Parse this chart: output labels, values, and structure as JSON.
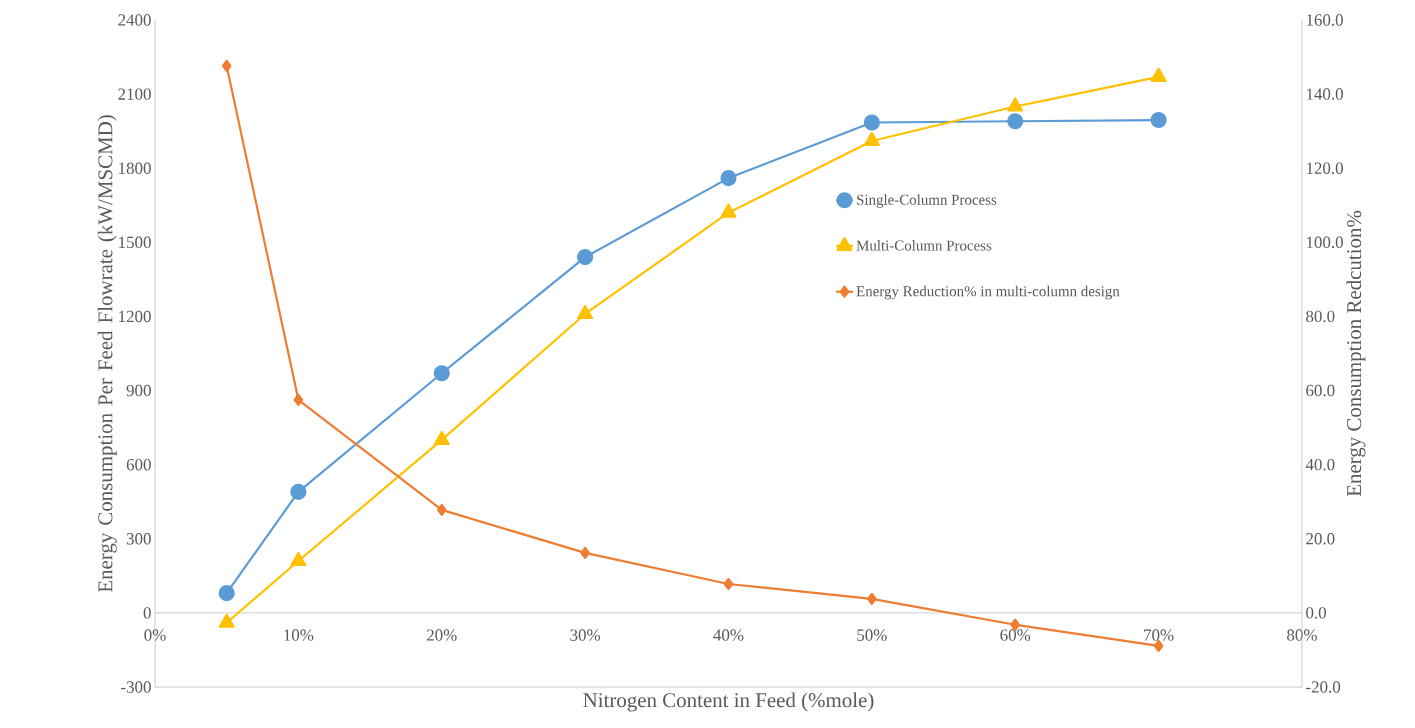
{
  "chart_data": {
    "type": "line",
    "xlabel": "Nitrogen Content in Feed (%mole)",
    "ylabel": "Energy Consumption Per Feed Flowrate (kW/MSCMD)",
    "y2label": "Energy Consumption Redcution%",
    "x": [
      5,
      10,
      20,
      30,
      40,
      50,
      60,
      70
    ],
    "xlim": [
      0,
      80
    ],
    "xticks": [
      {
        "value": 0,
        "label": "0%"
      },
      {
        "value": 10,
        "label": "10%"
      },
      {
        "value": 20,
        "label": "20%"
      },
      {
        "value": 30,
        "label": "30%"
      },
      {
        "value": 40,
        "label": "40%"
      },
      {
        "value": 50,
        "label": "50%"
      },
      {
        "value": 60,
        "label": "60%"
      },
      {
        "value": 70,
        "label": "70%"
      },
      {
        "value": 80,
        "label": "80%"
      }
    ],
    "ylim": [
      -300,
      2400
    ],
    "yticks": [
      -300,
      0,
      300,
      600,
      900,
      1200,
      1500,
      1800,
      2100,
      2400
    ],
    "y2lim": [
      -20,
      160
    ],
    "y2ticks": [
      {
        "value": -20,
        "label": "-20.0"
      },
      {
        "value": 0,
        "label": "0.0"
      },
      {
        "value": 20,
        "label": "20.0"
      },
      {
        "value": 40,
        "label": "40.0"
      },
      {
        "value": 60,
        "label": "60.0"
      },
      {
        "value": 80,
        "label": "80.0"
      },
      {
        "value": 100,
        "label": "100.0"
      },
      {
        "value": 120,
        "label": "120.0"
      },
      {
        "value": 140,
        "label": "140.0"
      },
      {
        "value": 160,
        "label": "160.0"
      }
    ],
    "series": [
      {
        "name": "Single-Column Process",
        "color": "#5b9bd5",
        "marker": "circle",
        "values": [
          80,
          490,
          970,
          1440,
          1760,
          1985,
          1990,
          1995
        ]
      },
      {
        "name": "Multi-Column Process",
        "color": "#ffc000",
        "marker": "triangle",
        "values": [
          -40,
          210,
          700,
          1210,
          1620,
          1910,
          2050,
          2170
        ]
      },
      {
        "name": "Energy Reduction% in multi-column design",
        "color": "#ed7d31",
        "marker": "diamond",
        "axis": "y2",
        "values": [
          147.6,
          57.5,
          27.8,
          16.2,
          7.8,
          3.8,
          -3.2,
          -8.9
        ]
      }
    ],
    "grid": false,
    "legend": "right",
    "line_style": "solid"
  }
}
